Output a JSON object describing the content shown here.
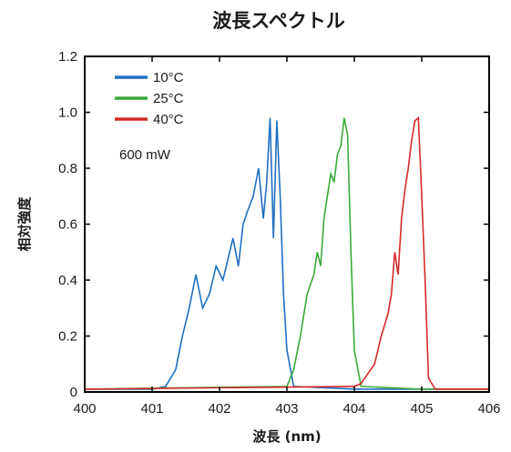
{
  "chart_data": {
    "type": "line",
    "title": "波長スペクトル",
    "xlabel": "波長 (nm)",
    "ylabel": "相対強度",
    "xlim": [
      400,
      406
    ],
    "ylim": [
      0,
      1.2
    ],
    "x_ticks": [
      "400",
      "401",
      "402",
      "403",
      "404",
      "405",
      "406"
    ],
    "y_ticks": [
      "0",
      "0.2",
      "0.4",
      "0.6",
      "0.8",
      "1.0",
      "1.2"
    ],
    "grid": false,
    "legend_position": "top-left",
    "annotation": "600 mW",
    "series": [
      {
        "name": "10°C",
        "color": "#1f6fc0",
        "x": [
          400.0,
          401.0,
          401.2,
          401.35,
          401.45,
          401.55,
          401.65,
          401.75,
          401.85,
          401.95,
          402.05,
          402.15,
          402.2,
          402.28,
          402.35,
          402.42,
          402.5,
          402.58,
          402.65,
          402.7,
          402.75,
          402.8,
          402.85,
          402.9,
          402.95,
          403.0,
          403.1,
          404.0,
          406.0
        ],
        "y": [
          0.01,
          0.01,
          0.02,
          0.08,
          0.2,
          0.3,
          0.42,
          0.3,
          0.35,
          0.45,
          0.4,
          0.5,
          0.55,
          0.45,
          0.6,
          0.65,
          0.7,
          0.8,
          0.62,
          0.75,
          0.98,
          0.55,
          0.97,
          0.7,
          0.35,
          0.15,
          0.02,
          0.01,
          0.01
        ]
      },
      {
        "name": "25°C",
        "color": "#3aaa3a",
        "x": [
          400.0,
          403.0,
          403.1,
          403.2,
          403.3,
          403.4,
          403.45,
          403.5,
          403.55,
          403.6,
          403.65,
          403.7,
          403.75,
          403.8,
          403.85,
          403.9,
          403.95,
          404.0,
          404.1,
          405.0,
          406.0
        ],
        "y": [
          0.01,
          0.02,
          0.08,
          0.2,
          0.35,
          0.42,
          0.5,
          0.45,
          0.62,
          0.7,
          0.78,
          0.75,
          0.85,
          0.88,
          0.98,
          0.92,
          0.5,
          0.15,
          0.02,
          0.01,
          0.01
        ]
      },
      {
        "name": "40°C",
        "color": "#d62a2a",
        "x": [
          400.0,
          404.0,
          404.1,
          404.3,
          404.4,
          404.5,
          404.55,
          404.6,
          404.65,
          404.7,
          404.75,
          404.8,
          404.85,
          404.9,
          404.95,
          405.0,
          405.05,
          405.1,
          405.2,
          406.0
        ],
        "y": [
          0.01,
          0.02,
          0.03,
          0.1,
          0.2,
          0.28,
          0.35,
          0.5,
          0.42,
          0.62,
          0.72,
          0.8,
          0.9,
          0.97,
          0.98,
          0.7,
          0.4,
          0.05,
          0.01,
          0.01
        ]
      }
    ]
  }
}
